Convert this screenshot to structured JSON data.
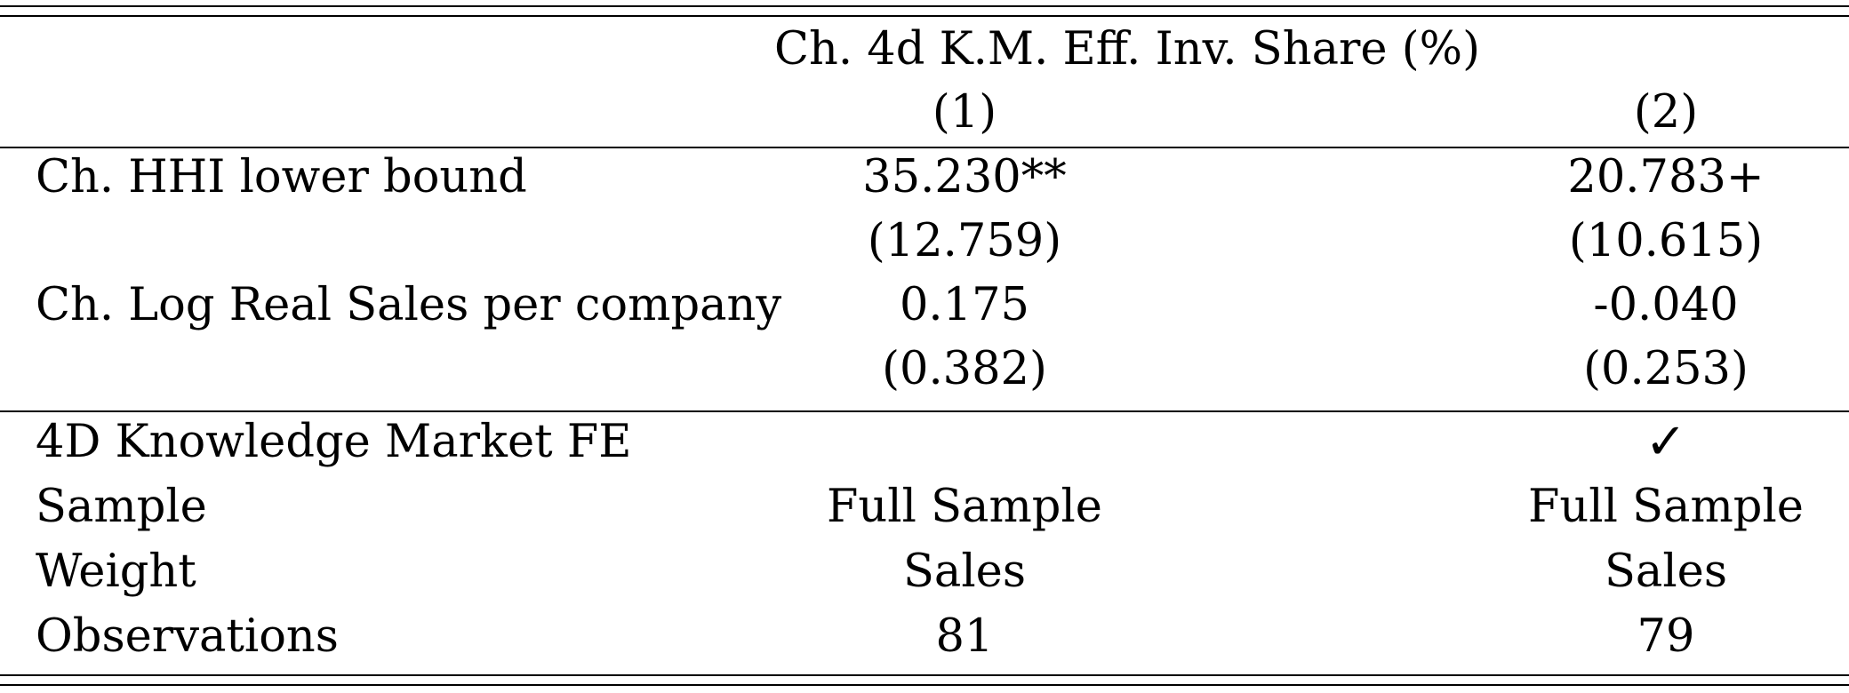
{
  "table": {
    "dependent_variable": "Ch. 4d K.M. Eff. Inv. Share (%)",
    "columns": [
      "(1)",
      "(2)"
    ],
    "rows": [
      {
        "label": "Ch. HHI lower bound",
        "values": [
          "35.230**",
          "20.783+"
        ]
      },
      {
        "label": "",
        "values": [
          "(12.759)",
          "(10.615)"
        ]
      },
      {
        "label": "Ch. Log Real Sales per company",
        "values": [
          "0.175",
          "-0.040"
        ]
      },
      {
        "label": "",
        "values": [
          "(0.382)",
          "(0.253)"
        ]
      }
    ],
    "footer_rows": [
      {
        "label": "4D Knowledge Market FE",
        "values": [
          "",
          "✓"
        ]
      },
      {
        "label": "Sample",
        "values": [
          "Full Sample",
          "Full Sample"
        ]
      },
      {
        "label": "Weight",
        "values": [
          "Sales",
          "Sales"
        ]
      },
      {
        "label": "Observations",
        "values": [
          "81",
          "79"
        ]
      }
    ]
  }
}
